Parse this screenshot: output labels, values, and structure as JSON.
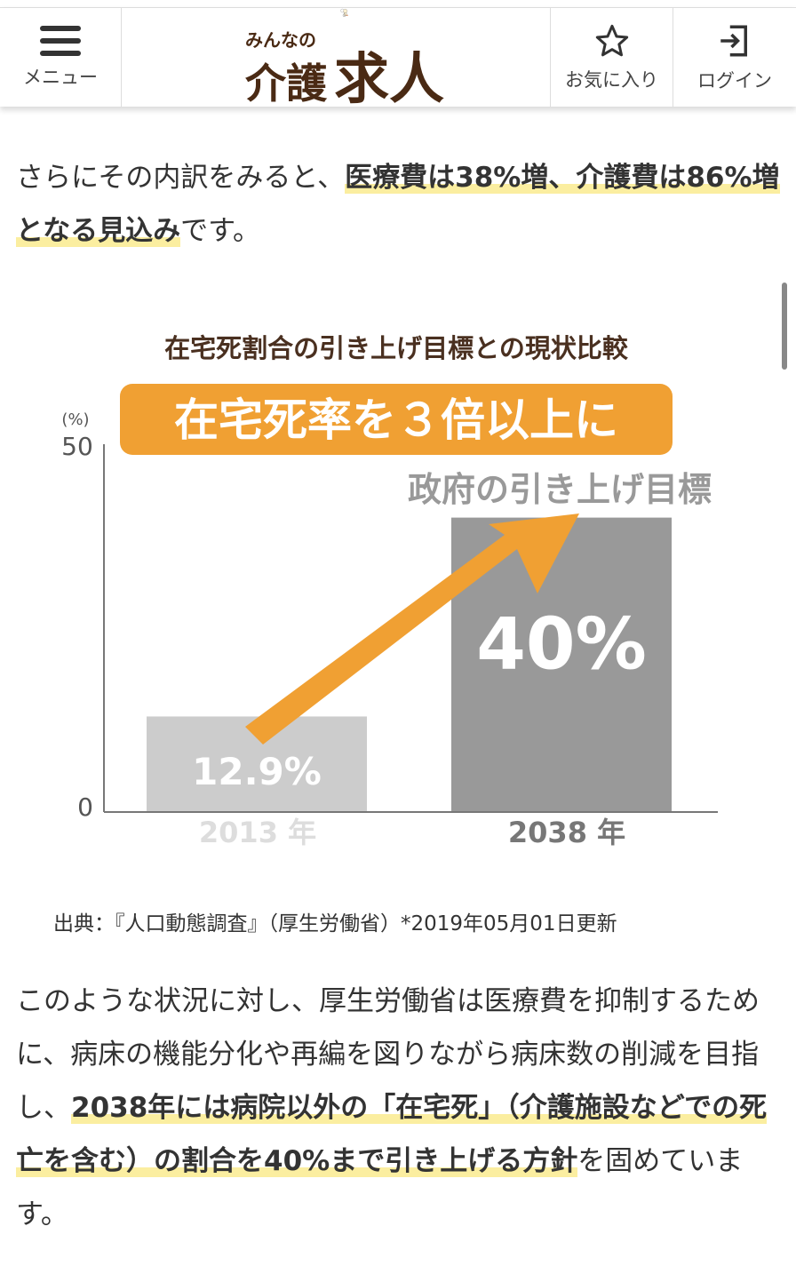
{
  "header": {
    "menu_label": "メニュー",
    "logo": {
      "small": "みんなの",
      "brand": "介護",
      "brand_big": "求人"
    },
    "favorites_label": "お気に入り",
    "login_label": "ログイン"
  },
  "intro": {
    "pre": "さらにその内訳をみると、",
    "highlight": "医療費は38%増、介護費は86%増となる見込み",
    "post": "です。"
  },
  "chart_data": {
    "type": "bar",
    "title": "在宅死割合の引き上げ目標との現状比較",
    "banner": "在宅死率を３倍以上に",
    "annotation": "政府の引き上げ目標",
    "yunit": "(%)",
    "ylim": [
      0,
      50
    ],
    "yticks": [
      "0",
      "50"
    ],
    "categories": [
      "2013 年",
      "2038 年"
    ],
    "values": [
      12.9,
      40
    ],
    "data_labels": [
      "12.9%",
      "40%"
    ],
    "colors": {
      "bar_current": "#cccccc",
      "bar_target": "#999999",
      "accent": "#f0a033"
    }
  },
  "source": "出典：『人口動態調査』（厚生労働省）*2019年05月01日更新",
  "body": {
    "pre": "このような状況に対し、厚生労働省は医療費を抑制するために、病床の機能分化や再編を図りながら病床数の削減を目指し、",
    "highlight": "2038年には病院以外の「在宅死」（介護施設などでの死亡を含む）の割合を40%まで引き上げる方針",
    "post": "を固めています。"
  }
}
